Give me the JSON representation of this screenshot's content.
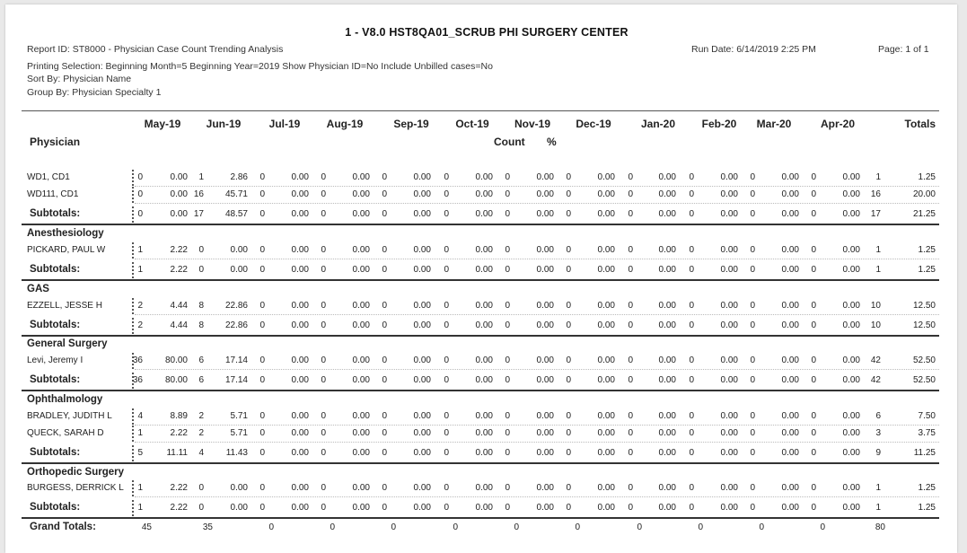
{
  "report": {
    "title": "1 - V8.0 HST8QA01_SCRUB PHI SURGERY CENTER",
    "report_id": "Report ID: ST8000 - Physician Case Count Trending Analysis",
    "run_date": "Run Date: 6/14/2019 2:25 PM",
    "page": "Page: 1 of 1",
    "printing_selection": "Printing Selection: Beginning Month=5 Beginning Year=2019 Show Physician ID=No Include Unbilled cases=No",
    "sort_by": "Sort By: Physician Name",
    "group_by": "Group By: Physician Specialty 1"
  },
  "columns": {
    "months": [
      "May-19",
      "Jun-19",
      "Jul-19",
      "Aug-19",
      "Sep-19",
      "Oct-19",
      "Nov-19",
      "Dec-19",
      "Jan-20",
      "Feb-20",
      "Mar-20",
      "Apr-20"
    ],
    "totals": "Totals",
    "physician": "Physician",
    "count": "Count",
    "percent": "%"
  },
  "rows": [
    {
      "type": "data",
      "name": "WD1, CD1",
      "values": [
        "0",
        "0.00",
        "1",
        "2.86",
        "0",
        "0.00",
        "0",
        "0.00",
        "0",
        "0.00",
        "0",
        "0.00",
        "0",
        "0.00",
        "0",
        "0.00",
        "0",
        "0.00",
        "0",
        "0.00",
        "0",
        "0.00",
        "0",
        "0.00",
        "1",
        "1.25"
      ]
    },
    {
      "type": "data",
      "name": "WD111, CD1",
      "values": [
        "0",
        "0.00",
        "16",
        "45.71",
        "0",
        "0.00",
        "0",
        "0.00",
        "0",
        "0.00",
        "0",
        "0.00",
        "0",
        "0.00",
        "0",
        "0.00",
        "0",
        "0.00",
        "0",
        "0.00",
        "0",
        "0.00",
        "0",
        "0.00",
        "16",
        "20.00"
      ]
    },
    {
      "type": "subtotal",
      "name": "Subtotals:",
      "values": [
        "0",
        "0.00",
        "17",
        "48.57",
        "0",
        "0.00",
        "0",
        "0.00",
        "0",
        "0.00",
        "0",
        "0.00",
        "0",
        "0.00",
        "0",
        "0.00",
        "0",
        "0.00",
        "0",
        "0.00",
        "0",
        "0.00",
        "0",
        "0.00",
        "17",
        "21.25"
      ]
    },
    {
      "type": "group",
      "name": "Anesthesiology"
    },
    {
      "type": "data",
      "name": "PICKARD, PAUL W",
      "values": [
        "1",
        "2.22",
        "0",
        "0.00",
        "0",
        "0.00",
        "0",
        "0.00",
        "0",
        "0.00",
        "0",
        "0.00",
        "0",
        "0.00",
        "0",
        "0.00",
        "0",
        "0.00",
        "0",
        "0.00",
        "0",
        "0.00",
        "0",
        "0.00",
        "1",
        "1.25"
      ]
    },
    {
      "type": "subtotal",
      "name": "Subtotals:",
      "values": [
        "1",
        "2.22",
        "0",
        "0.00",
        "0",
        "0.00",
        "0",
        "0.00",
        "0",
        "0.00",
        "0",
        "0.00",
        "0",
        "0.00",
        "0",
        "0.00",
        "0",
        "0.00",
        "0",
        "0.00",
        "0",
        "0.00",
        "0",
        "0.00",
        "1",
        "1.25"
      ]
    },
    {
      "type": "group",
      "name": "GAS"
    },
    {
      "type": "data",
      "name": "EZZELL, JESSE H",
      "values": [
        "2",
        "4.44",
        "8",
        "22.86",
        "0",
        "0.00",
        "0",
        "0.00",
        "0",
        "0.00",
        "0",
        "0.00",
        "0",
        "0.00",
        "0",
        "0.00",
        "0",
        "0.00",
        "0",
        "0.00",
        "0",
        "0.00",
        "0",
        "0.00",
        "10",
        "12.50"
      ]
    },
    {
      "type": "subtotal",
      "name": "Subtotals:",
      "values": [
        "2",
        "4.44",
        "8",
        "22.86",
        "0",
        "0.00",
        "0",
        "0.00",
        "0",
        "0.00",
        "0",
        "0.00",
        "0",
        "0.00",
        "0",
        "0.00",
        "0",
        "0.00",
        "0",
        "0.00",
        "0",
        "0.00",
        "0",
        "0.00",
        "10",
        "12.50"
      ]
    },
    {
      "type": "group",
      "name": "General Surgery"
    },
    {
      "type": "data",
      "name": "Levi, Jeremy I",
      "values": [
        "36",
        "80.00",
        "6",
        "17.14",
        "0",
        "0.00",
        "0",
        "0.00",
        "0",
        "0.00",
        "0",
        "0.00",
        "0",
        "0.00",
        "0",
        "0.00",
        "0",
        "0.00",
        "0",
        "0.00",
        "0",
        "0.00",
        "0",
        "0.00",
        "42",
        "52.50"
      ]
    },
    {
      "type": "subtotal",
      "name": "Subtotals:",
      "values": [
        "36",
        "80.00",
        "6",
        "17.14",
        "0",
        "0.00",
        "0",
        "0.00",
        "0",
        "0.00",
        "0",
        "0.00",
        "0",
        "0.00",
        "0",
        "0.00",
        "0",
        "0.00",
        "0",
        "0.00",
        "0",
        "0.00",
        "0",
        "0.00",
        "42",
        "52.50"
      ]
    },
    {
      "type": "group",
      "name": "Ophthalmology"
    },
    {
      "type": "data",
      "name": "BRADLEY, JUDITH L",
      "values": [
        "4",
        "8.89",
        "2",
        "5.71",
        "0",
        "0.00",
        "0",
        "0.00",
        "0",
        "0.00",
        "0",
        "0.00",
        "0",
        "0.00",
        "0",
        "0.00",
        "0",
        "0.00",
        "0",
        "0.00",
        "0",
        "0.00",
        "0",
        "0.00",
        "6",
        "7.50"
      ]
    },
    {
      "type": "data",
      "name": "QUECK, SARAH D",
      "values": [
        "1",
        "2.22",
        "2",
        "5.71",
        "0",
        "0.00",
        "0",
        "0.00",
        "0",
        "0.00",
        "0",
        "0.00",
        "0",
        "0.00",
        "0",
        "0.00",
        "0",
        "0.00",
        "0",
        "0.00",
        "0",
        "0.00",
        "0",
        "0.00",
        "3",
        "3.75"
      ]
    },
    {
      "type": "subtotal",
      "name": "Subtotals:",
      "values": [
        "5",
        "11.11",
        "4",
        "11.43",
        "0",
        "0.00",
        "0",
        "0.00",
        "0",
        "0.00",
        "0",
        "0.00",
        "0",
        "0.00",
        "0",
        "0.00",
        "0",
        "0.00",
        "0",
        "0.00",
        "0",
        "0.00",
        "0",
        "0.00",
        "9",
        "11.25"
      ]
    },
    {
      "type": "group",
      "name": "Orthopedic Surgery"
    },
    {
      "type": "data",
      "name": "BURGESS, DERRICK L",
      "values": [
        "1",
        "2.22",
        "0",
        "0.00",
        "0",
        "0.00",
        "0",
        "0.00",
        "0",
        "0.00",
        "0",
        "0.00",
        "0",
        "0.00",
        "0",
        "0.00",
        "0",
        "0.00",
        "0",
        "0.00",
        "0",
        "0.00",
        "0",
        "0.00",
        "1",
        "1.25"
      ]
    },
    {
      "type": "subtotal",
      "name": "Subtotals:",
      "values": [
        "1",
        "2.22",
        "0",
        "0.00",
        "0",
        "0.00",
        "0",
        "0.00",
        "0",
        "0.00",
        "0",
        "0.00",
        "0",
        "0.00",
        "0",
        "0.00",
        "0",
        "0.00",
        "0",
        "0.00",
        "0",
        "0.00",
        "0",
        "0.00",
        "1",
        "1.25"
      ]
    }
  ],
  "grand_totals": {
    "label": "Grand Totals:",
    "values": [
      "45",
      "35",
      "0",
      "0",
      "0",
      "0",
      "0",
      "0",
      "0",
      "0",
      "0",
      "0",
      "80"
    ]
  }
}
